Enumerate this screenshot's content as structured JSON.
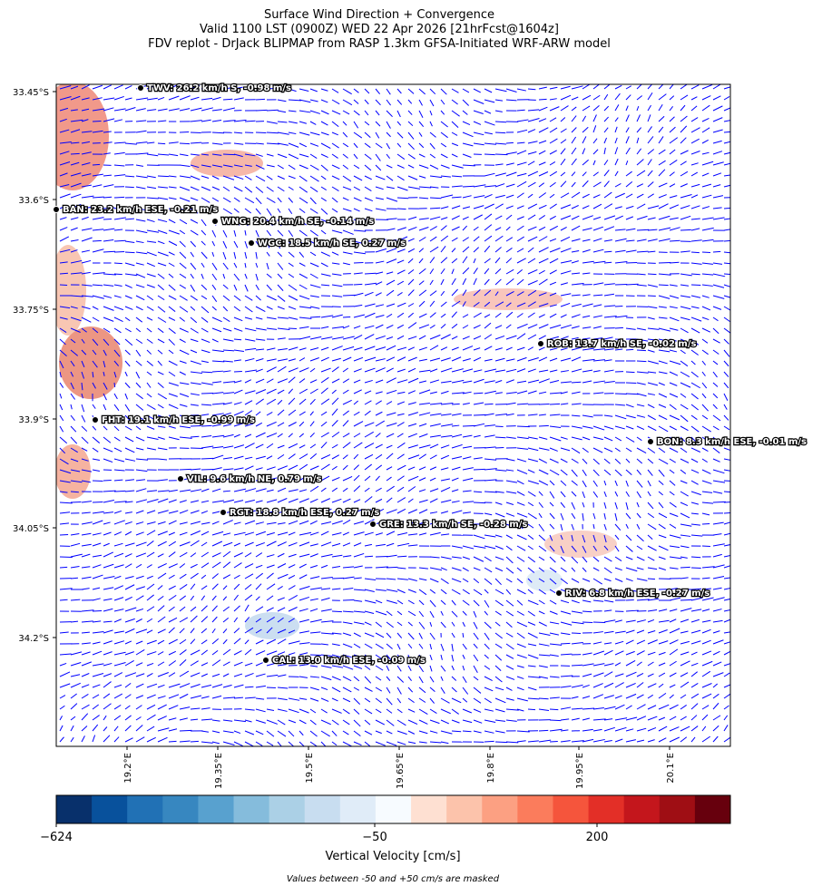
{
  "title": [
    "Surface Wind Direction + Convergence",
    "Valid 1100 LST (0900Z) WED 22 Apr 2026 [21hrFcst@1604z]",
    "FDV replot - DrJack BLIPMAP from RASP 1.3km GFSA-Initiated WRF-ARW model"
  ],
  "map": {
    "lat_ticks": [
      "33.45°S",
      "33.6°S",
      "33.75°S",
      "33.9°S",
      "34.05°S",
      "34.2°S"
    ],
    "lon_ticks": [
      "19.2°E",
      "19.35°E",
      "19.5°E",
      "19.65°E",
      "19.8°E",
      "19.95°E",
      "20.1°E"
    ],
    "stations": [
      {
        "label": "TWV: 26.2 km/h S, -0.98 m/s"
      },
      {
        "label": "BAN: 23.2 km/h ESE, -0.21 m/s"
      },
      {
        "label": "WNG: 20.4 km/h SE, -0.14 m/s"
      },
      {
        "label": "WGC: 18.5 km/h SE, 0.27 m/s"
      },
      {
        "label": "ROB: 13.7 km/h SE, -0.02 m/s"
      },
      {
        "label": "FHT: 19.1 km/h ESE, -0.99 m/s"
      },
      {
        "label": "BON: 8.3 km/h ESE, -0.01 m/s"
      },
      {
        "label": "VIL: 9.6 km/h NE, 0.79 m/s"
      },
      {
        "label": "RGT: 18.8 km/h ESE, 0.27 m/s"
      },
      {
        "label": "GRE: 13.3 km/h SE, -0.28 m/s"
      },
      {
        "label": "RIV: 6.8 km/h ESE, -0.27 m/s"
      },
      {
        "label": "CAL: 13.0 km/h ESE, -0.09 m/s"
      }
    ],
    "wind_color": "#0000ff"
  },
  "colorbar": {
    "colors": [
      "#08306b",
      "#08519c",
      "#2171b5",
      "#3787c0",
      "#58a1cf",
      "#85bcdc",
      "#abd0e6",
      "#c8ddf0",
      "#e0ecf8",
      "#f7fbff",
      "#fee0d2",
      "#fcc3ab",
      "#fca082",
      "#fb7c5c",
      "#f5553c",
      "#e32f27",
      "#c4161c",
      "#9f0e14",
      "#67000d"
    ],
    "tick_labels": [
      "−624",
      "−50",
      "200"
    ],
    "label": "Vertical Velocity [cm/s]"
  },
  "footnote": "Values between -50 and +50 cm/s are masked"
}
